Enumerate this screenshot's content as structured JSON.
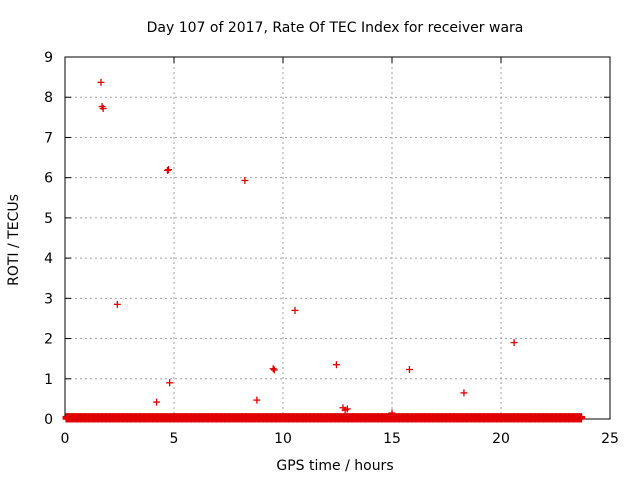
{
  "chart_data": {
    "type": "scatter",
    "title": "Day 107 of 2017, Rate Of TEC Index for receiver wara",
    "xlabel": "GPS time / hours",
    "ylabel": "ROTI / TECUs",
    "xlim": [
      0,
      25
    ],
    "ylim": [
      0,
      9
    ],
    "x_ticks": [
      0,
      5,
      10,
      15,
      20,
      25
    ],
    "y_ticks": [
      0,
      1,
      2,
      3,
      4,
      5,
      6,
      7,
      8,
      9
    ],
    "x_tick_labels": [
      "0",
      "5",
      "10",
      "15",
      "20",
      "25"
    ],
    "y_tick_labels": [
      "0",
      "1",
      "2",
      "3",
      "4",
      "5",
      "6",
      "7",
      "8",
      "9"
    ],
    "grid": true,
    "marker": "+",
    "marker_color": "#e00000",
    "baseline_band": {
      "x_start": 0.05,
      "x_end": 23.7,
      "y_values": [
        0.0,
        0.02,
        0.04,
        0.06
      ]
    },
    "points": [
      {
        "x": 1.65,
        "y": 8.37
      },
      {
        "x": 1.75,
        "y": 7.72
      },
      {
        "x": 1.7,
        "y": 7.77
      },
      {
        "x": 2.4,
        "y": 2.85
      },
      {
        "x": 4.2,
        "y": 0.42
      },
      {
        "x": 4.7,
        "y": 6.18
      },
      {
        "x": 4.75,
        "y": 6.2
      },
      {
        "x": 4.8,
        "y": 0.9
      },
      {
        "x": 8.25,
        "y": 5.93
      },
      {
        "x": 8.8,
        "y": 0.47
      },
      {
        "x": 9.55,
        "y": 1.25
      },
      {
        "x": 9.6,
        "y": 1.22
      },
      {
        "x": 10.55,
        "y": 2.7
      },
      {
        "x": 12.45,
        "y": 1.35
      },
      {
        "x": 12.75,
        "y": 0.28
      },
      {
        "x": 12.85,
        "y": 0.22
      },
      {
        "x": 12.95,
        "y": 0.25
      },
      {
        "x": 15.0,
        "y": 0.15
      },
      {
        "x": 15.8,
        "y": 1.23
      },
      {
        "x": 18.3,
        "y": 0.65
      },
      {
        "x": 20.6,
        "y": 1.9
      }
    ]
  }
}
